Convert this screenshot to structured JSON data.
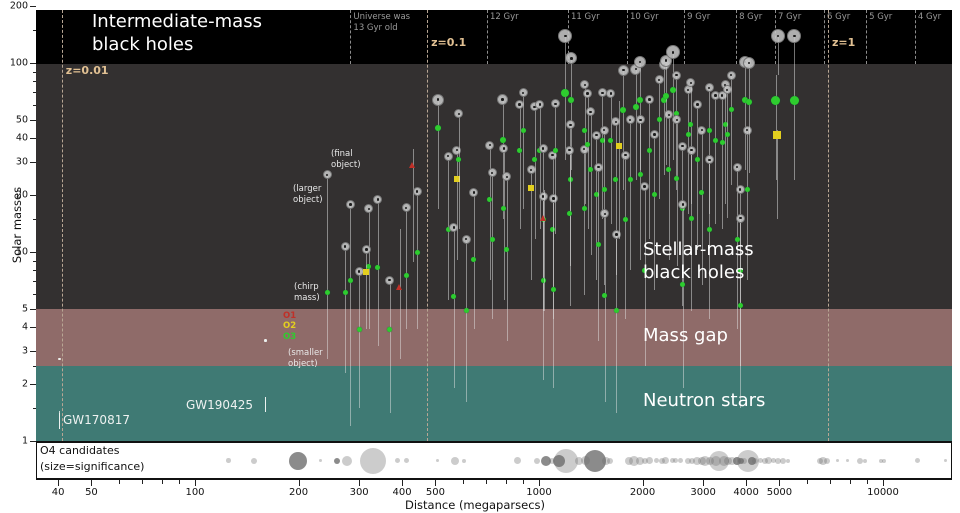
{
  "axes": {
    "ylabel": "Solar masses",
    "xlabel": "Distance (megaparsecs)",
    "y_ticks": [
      200,
      100,
      50,
      40,
      30,
      20,
      10,
      5,
      4,
      3,
      2,
      1
    ],
    "y_minor_ticks": [
      150,
      90,
      80,
      70,
      60,
      15,
      9,
      8,
      7,
      6,
      2.5,
      1.5
    ],
    "x_ticks": [
      40,
      50,
      100,
      200,
      300,
      400,
      500,
      1000,
      2000,
      3000,
      4000,
      5000,
      10000
    ],
    "x_minor_ticks": [
      60,
      70,
      80,
      90,
      600,
      700,
      800,
      900,
      6000,
      7000,
      8000,
      9000
    ]
  },
  "labels": {
    "imbh": "Intermediate-mass\nblack holes",
    "stellar": "Stellar-mass\nblack holes",
    "mass_gap": "Mass gap",
    "neutron_stars": "Neutron stars",
    "gw170817": "GW170817",
    "gw190425": "GW190425",
    "o4_strip": "O4 candidates\n(size=significance)",
    "anno_final": "(final\nobject)",
    "anno_larger": "(larger\nobject)",
    "anno_chirp": "(chirp\nmass)",
    "anno_smaller": "(smaller\nobject)",
    "legend_o1": "O1",
    "legend_o2": "O2",
    "legend_o3": "O3"
  },
  "colors": {
    "band_imbh": "#000000",
    "band_stellar": "#333030",
    "band_mass_gap": "#8f6b69",
    "band_neutron": "#3f7a74",
    "o1": "#c03028",
    "o2": "#e3cf1f",
    "o3": "#2ecc2e",
    "bns": "#ecf0ee",
    "final_circle": "#c6c6c6",
    "z_label": "#e2c193",
    "o4_dot": "#6e6e6e"
  },
  "timeline": {
    "z_lines": [
      {
        "label": "z=0.01",
        "distance_mpc": 41,
        "label_y": 64
      },
      {
        "label": "z=0.1",
        "distance_mpc": 473,
        "label_y": 36
      },
      {
        "label": "z=1",
        "distance_mpc": 6920,
        "label_y": 36
      }
    ],
    "gyr_lines": [
      {
        "label": "Universe was\n13 Gyr old",
        "distance_mpc": 283
      },
      {
        "label": "12 Gyr",
        "distance_mpc": 706
      },
      {
        "label": "11 Gyr",
        "distance_mpc": 1214
      },
      {
        "label": "10 Gyr",
        "distance_mpc": 1802
      },
      {
        "label": "9 Gyr",
        "distance_mpc": 2641
      },
      {
        "label": "8 Gyr",
        "distance_mpc": 3740
      },
      {
        "label": "7 Gyr",
        "distance_mpc": 4853
      },
      {
        "label": "6 Gyr",
        "distance_mpc": 6740
      },
      {
        "label": "5 Gyr",
        "distance_mpc": 8930
      },
      {
        "label": "4 Gyr",
        "distance_mpc": 12380
      }
    ]
  },
  "chart_data": {
    "type": "scatter",
    "x_axis": {
      "label": "Distance (megaparsecs)",
      "scale": "log",
      "range": [
        34.5,
        15850
      ]
    },
    "y_axis": {
      "label": "Solar masses",
      "scale": "log",
      "range": [
        1,
        200
      ]
    },
    "mass_regions": [
      {
        "name": "Intermediate-mass black holes",
        "mass_range": [
          100,
          200
        ]
      },
      {
        "name": "Stellar-mass black holes",
        "mass_range": [
          5,
          100
        ]
      },
      {
        "name": "Mass gap",
        "mass_range": [
          2.5,
          5
        ]
      },
      {
        "name": "Neutron stars",
        "mass_range": [
          1,
          2.5
        ]
      }
    ],
    "events_format": [
      "distance_mpc",
      "line_top_mass",
      "final_object_mass",
      "chirp_mass",
      "line_bottom_mass",
      "run",
      "circle_radius_px",
      "marker_radius_px"
    ],
    "events": [
      [
        242,
        25.6,
        25.6,
        6.1,
        2.7,
        "O3"
      ],
      [
        273,
        10.7,
        10.7,
        6.1,
        2.3,
        "O3"
      ],
      [
        283,
        17.9,
        17.9,
        7.1,
        1.2,
        "O3"
      ],
      [
        300,
        7.9,
        7.9,
        3.9,
        1.5,
        "O3"
      ],
      [
        320,
        16.9,
        16.9,
        8.4,
        3.9,
        "O3"
      ],
      [
        315,
        10.3,
        10.3,
        7.8,
        3.9,
        "O2"
      ],
      [
        340,
        19,
        19,
        8.3,
        3.2,
        "O3"
      ],
      [
        368,
        7.1,
        7.1,
        3.9,
        1.4,
        "O3"
      ],
      [
        394,
        13.2,
        null,
        6.5,
        2.7,
        "O1"
      ],
      [
        411,
        17.1,
        17.1,
        7.5,
        3.9,
        "O3"
      ],
      [
        430,
        35,
        null,
        28.8,
        8.8,
        "O1"
      ],
      [
        442,
        20.9,
        20.9,
        10,
        3.9,
        "O3"
      ],
      [
        509,
        64,
        64,
        45.3,
        16.9,
        "O3",
        6,
        3
      ],
      [
        544,
        32.2,
        32.2,
        13.2,
        5.6,
        "O3"
      ],
      [
        566,
        13.5,
        13.5,
        5.8,
        1.9,
        "O3"
      ],
      [
        577,
        34.6,
        34.6,
        24.4,
        9.1,
        "O2"
      ],
      [
        585,
        53.9,
        53.9,
        30.7,
        13.2,
        "O3"
      ],
      [
        614,
        11.7,
        11.7,
        4.9,
        1.6,
        "O3"
      ],
      [
        647,
        20.7,
        20.7,
        9.1,
        3.9,
        "O3"
      ],
      [
        720,
        36.8,
        36.8,
        19,
        7.1,
        "O3"
      ],
      [
        731,
        26.2,
        26.2,
        11.7,
        4.4,
        "O3"
      ],
      [
        784,
        64,
        64,
        39.1,
        14.9,
        "O3",
        5.5,
        3
      ],
      [
        790,
        35.4,
        35.4,
        16.9,
        5.6,
        "O3"
      ],
      [
        807,
        25,
        25,
        10.3,
        3.4,
        "O3"
      ],
      [
        878,
        60.2,
        60.2,
        34.6,
        13.2,
        "O3"
      ],
      [
        899,
        69.6,
        69.6,
        44.1,
        16.9,
        "O3"
      ],
      [
        949,
        27.2,
        27.2,
        21.9,
        7.1,
        "O2"
      ],
      [
        971,
        58.7,
        58.7,
        30.7,
        11.7,
        "O3"
      ],
      [
        1005,
        60.2,
        60.2,
        34.6,
        13.2,
        "O3"
      ],
      [
        1028,
        35.4,
        35.4,
        14.9,
        4.9,
        "O3"
      ],
      [
        1028,
        19.7,
        19.7,
        7.1,
        2.1,
        "O3"
      ],
      [
        1034,
        21.4,
        null,
        15.1,
        4.9,
        "O1"
      ],
      [
        1095,
        32.6,
        32.6,
        13.2,
        4.4,
        "O3"
      ],
      [
        1100,
        19.2,
        19.2,
        6.3,
        1.9,
        "O3"
      ],
      [
        1115,
        60.9,
        60.9,
        34.6,
        12.4,
        "O3"
      ],
      [
        1194,
        139,
        139,
        69.6,
        30.7,
        "O3",
        7,
        4
      ],
      [
        1242,
        106,
        106,
        64,
        27.2,
        "O3",
        6,
        3
      ],
      [
        1234,
        47,
        47,
        24.1,
        8.4,
        "O3"
      ],
      [
        1228,
        34.6,
        34.6,
        15.9,
        5.2,
        "O3"
      ],
      [
        1358,
        76.6,
        76.6,
        44.1,
        17.9,
        "O3"
      ],
      [
        1352,
        35,
        35,
        16.9,
        5.9,
        "O3"
      ],
      [
        1385,
        68.8,
        68.8,
        37.2,
        13.2,
        "O3"
      ],
      [
        1412,
        55.2,
        55.2,
        27.2,
        9.6,
        "O3"
      ],
      [
        1469,
        41.5,
        41.5,
        20.2,
        7.1,
        "O3"
      ],
      [
        1488,
        28.1,
        28.1,
        11,
        3.4,
        "O3"
      ],
      [
        1527,
        69.6,
        69.6,
        39.1,
        14.9,
        "O3"
      ],
      [
        1547,
        44.1,
        44.1,
        21.4,
        6.7,
        "O3"
      ],
      [
        1553,
        15.9,
        15.9,
        5.9,
        1.6,
        "O3"
      ],
      [
        1617,
        68.8,
        68.8,
        39.1,
        14,
        "O3"
      ],
      [
        1671,
        48.8,
        48.8,
        24.1,
        7.6,
        "O3"
      ],
      [
        1677,
        12.4,
        12.4,
        4.9,
        1.4,
        "O3"
      ],
      [
        1714,
        63.2,
        null,
        36.3,
        11.7,
        "O2"
      ],
      [
        1759,
        91.8,
        91.8,
        56.6,
        21.4,
        "O3",
        5.5,
        3
      ],
      [
        1782,
        32.6,
        32.6,
        14.9,
        4.4,
        "O3"
      ],
      [
        1840,
        50,
        50,
        24.1,
        8,
        "O3"
      ],
      [
        1913,
        92.9,
        92.9,
        58.7,
        24.1,
        "O3",
        5.5,
        3
      ],
      [
        1963,
        101,
        101,
        64,
        27.2,
        "O3",
        6,
        3
      ],
      [
        1970,
        50,
        50,
        25.6,
        9.1,
        "O3"
      ],
      [
        2028,
        22.2,
        22.2,
        8,
        2.5,
        "O3"
      ],
      [
        2095,
        64,
        64,
        34.6,
        11.7,
        "O3"
      ],
      [
        2164,
        42,
        42,
        20.2,
        6.3,
        "O3"
      ],
      [
        2235,
        81.3,
        81.3,
        50,
        19,
        "O3"
      ],
      [
        2309,
        97.6,
        97.6,
        64,
        25.6,
        "O3",
        5.5,
        3
      ],
      [
        2340,
        103,
        103,
        67.2,
        28.8,
        "O3",
        6,
        3
      ],
      [
        2385,
        53.2,
        53.2,
        27.2,
        9.1,
        "O3"
      ],
      [
        2448,
        114,
        114,
        72.2,
        30.7,
        "O3",
        7,
        3
      ],
      [
        2510,
        86.3,
        86.3,
        53.9,
        21.4,
        "O3"
      ],
      [
        2516,
        50,
        50,
        24.4,
        8.4,
        "O3"
      ],
      [
        2611,
        36.3,
        36.3,
        16.9,
        5.2,
        "O3"
      ],
      [
        2617,
        17.9,
        17.9,
        6.7,
        1.9,
        "O3"
      ],
      [
        2714,
        72.2,
        72.2,
        42,
        15.9,
        "O3"
      ],
      [
        2766,
        78.4,
        78.4,
        47,
        17.9,
        "O3"
      ],
      [
        2772,
        34.6,
        34.6,
        15.1,
        4.9,
        "O3"
      ],
      [
        2888,
        60.2,
        60.2,
        30.7,
        10.3,
        "O3"
      ],
      [
        2977,
        44.1,
        44.1,
        20.7,
        6.7,
        "O3"
      ],
      [
        3124,
        73.9,
        73.9,
        44.1,
        15.9,
        "O3"
      ],
      [
        3130,
        30.7,
        30.7,
        13.2,
        4.4,
        "O3"
      ],
      [
        3253,
        67.2,
        67.2,
        39.1,
        14,
        "O3"
      ],
      [
        3408,
        67.2,
        67.2,
        38.1,
        13.2,
        "O3"
      ],
      [
        3477,
        76.6,
        76.6,
        47,
        17.9,
        "O3"
      ],
      [
        3524,
        72.2,
        72.2,
        42,
        15.1,
        "O3"
      ],
      [
        3619,
        86.3,
        86.3,
        56.6,
        22.7,
        "O3"
      ],
      [
        3767,
        28.1,
        28.1,
        11.7,
        3.9,
        "O3"
      ],
      [
        3843,
        21.4,
        21.4,
        8,
        2.5,
        "O3"
      ],
      [
        3850,
        15.1,
        15.1,
        5.2,
        1.5,
        "O3"
      ],
      [
        3974,
        101,
        101,
        64,
        27.2,
        "O3",
        6,
        3
      ],
      [
        4028,
        44.1,
        44.1,
        21.4,
        7.1,
        "O3"
      ],
      [
        4082,
        100,
        100,
        62.4,
        26.2,
        "O3",
        6,
        3
      ],
      [
        4879,
        86.3,
        null,
        63.2,
        24.1,
        "O3",
        null,
        4.5
      ],
      [
        4912,
        44.1,
        null,
        41.5,
        14.9,
        "O2",
        null,
        3.5
      ],
      [
        4945,
        139,
        139,
        null,
        86.3,
        "O3",
        7
      ],
      [
        5530,
        139,
        139,
        null,
        86.3,
        "O3",
        7
      ],
      [
        5530,
        86.3,
        null,
        63.2,
        24.1,
        "O3",
        null,
        4.5
      ],
      [
        40.3,
        1.45,
        2.72,
        null,
        1.16,
        "BNS",
        1.3
      ],
      [
        160,
        1.7,
        3.4,
        null,
        1.43,
        "BNS",
        1.3
      ]
    ],
    "o4_candidates_format": [
      "distance_mpc",
      "radius_px(significance)",
      "dark_flag"
    ],
    "o4_candidates": [
      [
        125,
        2.3
      ],
      [
        148,
        3
      ],
      [
        199,
        9,
        1
      ],
      [
        232,
        1.5
      ],
      [
        259,
        3,
        1
      ],
      [
        277,
        5
      ],
      [
        329,
        13
      ],
      [
        387,
        2.5
      ],
      [
        413,
        2.5
      ],
      [
        506,
        1.5
      ],
      [
        570,
        4
      ],
      [
        605,
        2
      ],
      [
        864,
        3.5
      ],
      [
        989,
        3
      ],
      [
        1050,
        5,
        1
      ],
      [
        1092,
        3
      ],
      [
        1141,
        6,
        1
      ],
      [
        1195,
        12
      ],
      [
        1305,
        4
      ],
      [
        1367,
        4.5
      ],
      [
        1456,
        11,
        1
      ],
      [
        1561,
        4
      ],
      [
        1611,
        3
      ],
      [
        1829,
        4
      ],
      [
        1891,
        5
      ],
      [
        1966,
        4
      ],
      [
        2030,
        3
      ],
      [
        2095,
        3.5
      ],
      [
        2190,
        2.5
      ],
      [
        2277,
        3
      ],
      [
        2336,
        3.5
      ],
      [
        2444,
        2.5
      ],
      [
        2492,
        2.5
      ],
      [
        2574,
        2.5
      ],
      [
        2714,
        3
      ],
      [
        2786,
        3
      ],
      [
        2878,
        4
      ],
      [
        2972,
        4
      ],
      [
        3030,
        5
      ],
      [
        3133,
        4
      ],
      [
        3260,
        5
      ],
      [
        3346,
        10
      ],
      [
        3459,
        5
      ],
      [
        3551,
        4
      ],
      [
        3645,
        4
      ],
      [
        3763,
        4,
        1
      ],
      [
        3860,
        3,
        1
      ],
      [
        3956,
        3
      ],
      [
        4054,
        11
      ],
      [
        4155,
        4,
        1
      ],
      [
        4259,
        3
      ],
      [
        4395,
        2.5
      ],
      [
        4536,
        3
      ],
      [
        4654,
        3.5
      ],
      [
        4806,
        2.5
      ],
      [
        4962,
        3
      ],
      [
        5125,
        3
      ],
      [
        5292,
        2
      ],
      [
        6570,
        3
      ],
      [
        6690,
        4
      ],
      [
        6860,
        3
      ],
      [
        7350,
        1.5
      ],
      [
        7900,
        1.5
      ],
      [
        8570,
        3
      ],
      [
        8860,
        2
      ],
      [
        9900,
        2
      ],
      [
        10100,
        2
      ],
      [
        12600,
        2.5
      ],
      [
        15200,
        1.5
      ]
    ]
  }
}
